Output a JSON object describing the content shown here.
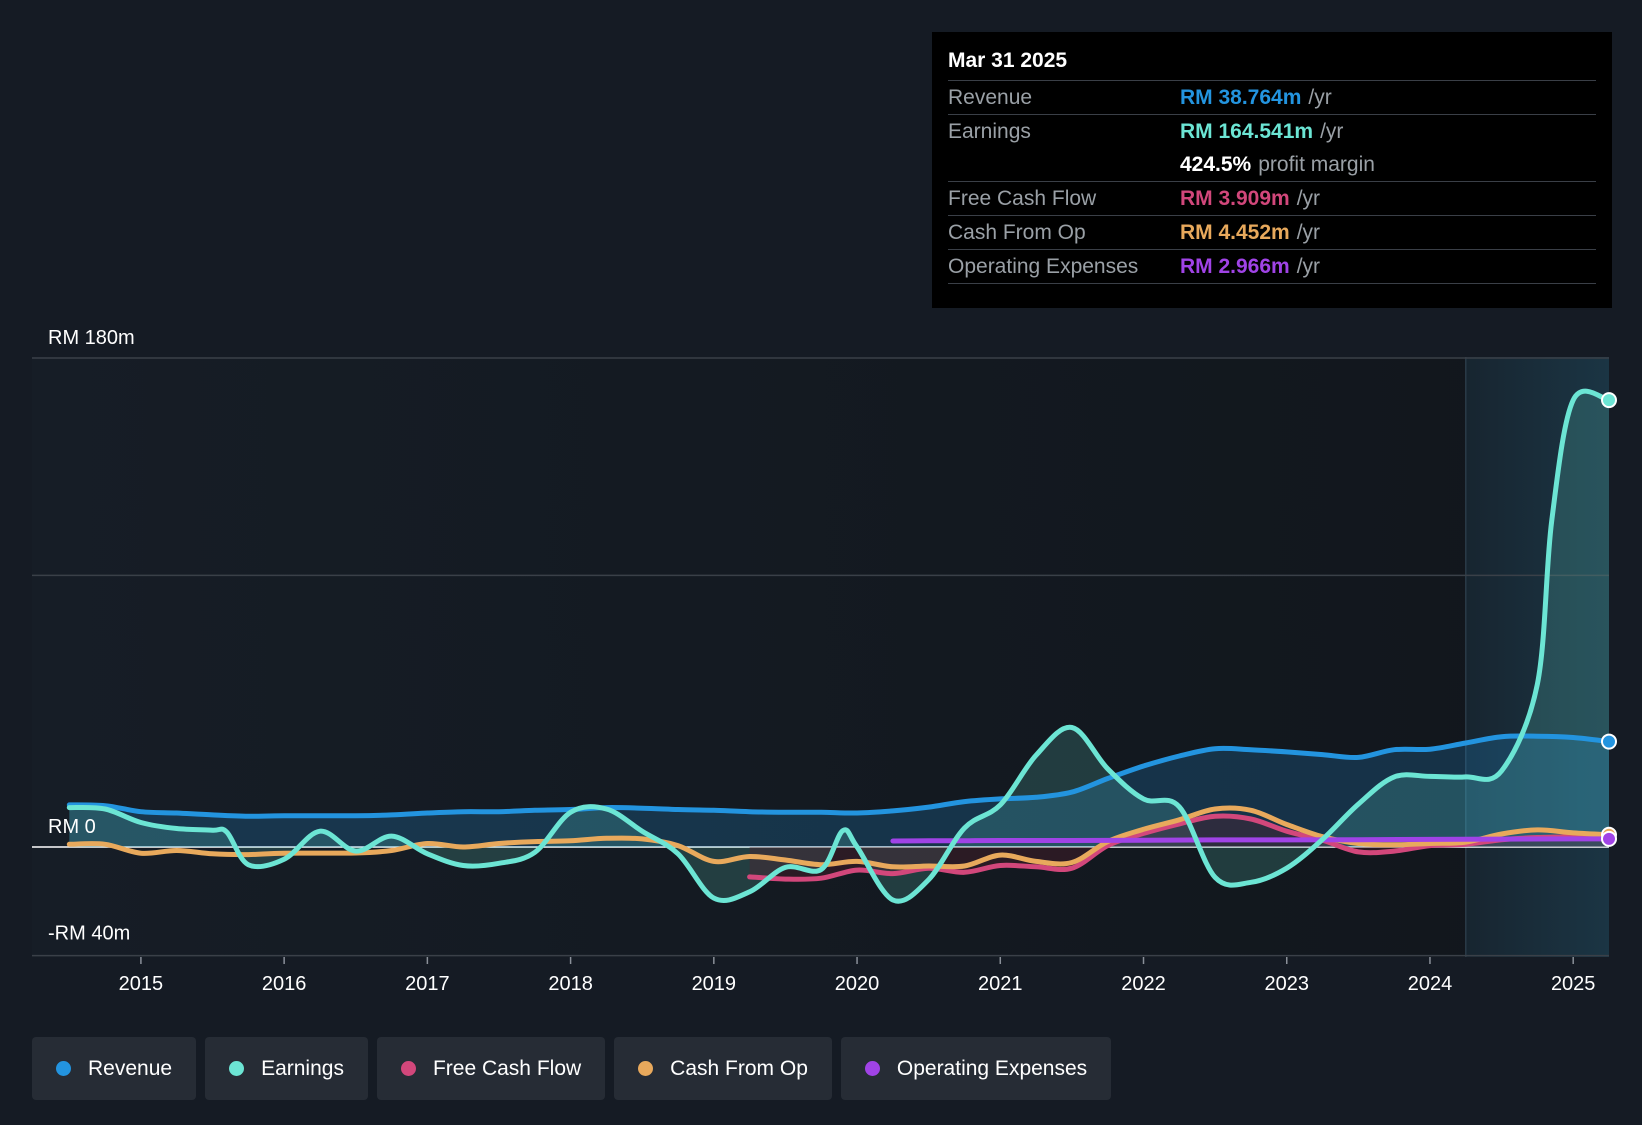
{
  "colors": {
    "revenue": "#2394df",
    "earnings": "#6ce5d4",
    "free_cash_flow": "#d2477b",
    "cash_from_op": "#e8a95c",
    "operating_expenses": "#a043e6",
    "background": "#151b24",
    "future_band": "#1a3140"
  },
  "tooltip": {
    "date": "Mar 31 2025",
    "rows": [
      {
        "label": "Revenue",
        "value": "RM 38.764m",
        "unit": "/yr"
      },
      {
        "label": "Earnings",
        "value": "RM 164.541m",
        "unit": "/yr"
      },
      {
        "margin_value": "424.5%",
        "margin_label": "profit margin"
      },
      {
        "label": "Free Cash Flow",
        "value": "RM 3.909m",
        "unit": "/yr"
      },
      {
        "label": "Cash From Op",
        "value": "RM 4.452m",
        "unit": "/yr"
      },
      {
        "label": "Operating Expenses",
        "value": "RM 2.966m",
        "unit": "/yr"
      }
    ]
  },
  "legend": [
    {
      "label": "Revenue",
      "color": "#2394df"
    },
    {
      "label": "Earnings",
      "color": "#6ce5d4"
    },
    {
      "label": "Free Cash Flow",
      "color": "#d2477b"
    },
    {
      "label": "Cash From Op",
      "color": "#e8a95c"
    },
    {
      "label": "Operating Expenses",
      "color": "#a043e6"
    }
  ],
  "chart_data": {
    "type": "line",
    "title": "",
    "xlabel": "",
    "ylabel": "",
    "y_tick_labels": [
      {
        "value": 180,
        "label": "RM 180m"
      },
      {
        "value": 0,
        "label": "RM 0"
      },
      {
        "value": -40,
        "label": "-RM 40m"
      }
    ],
    "ylim": [
      -40,
      180
    ],
    "xlim": [
      2014.47,
      2025.25
    ],
    "x_ticks": [
      2015,
      2016,
      2017,
      2018,
      2019,
      2020,
      2021,
      2022,
      2023,
      2024,
      2025
    ],
    "x_tick_labels": [
      "2015",
      "2016",
      "2017",
      "2018",
      "2019",
      "2020",
      "2021",
      "2022",
      "2023",
      "2024",
      "2025"
    ],
    "gridlines": [
      180,
      100,
      0,
      -40
    ],
    "highlight_from": 2024.25,
    "series": [
      {
        "name": "Revenue",
        "key": "revenue",
        "fill": true,
        "points": [
          [
            2014.5,
            15.5
          ],
          [
            2014.75,
            15.2
          ],
          [
            2015.0,
            13
          ],
          [
            2015.25,
            12.5
          ],
          [
            2015.5,
            11.8
          ],
          [
            2015.75,
            11.3
          ],
          [
            2016.0,
            11.5
          ],
          [
            2016.5,
            11.5
          ],
          [
            2016.75,
            11.8
          ],
          [
            2017.0,
            12.5
          ],
          [
            2017.25,
            13
          ],
          [
            2017.5,
            13
          ],
          [
            2017.75,
            13.5
          ],
          [
            2018.0,
            13.8
          ],
          [
            2018.25,
            14.5
          ],
          [
            2018.5,
            14.3
          ],
          [
            2018.75,
            13.8
          ],
          [
            2019.0,
            13.5
          ],
          [
            2019.25,
            13
          ],
          [
            2019.5,
            12.8
          ],
          [
            2019.75,
            12.8
          ],
          [
            2020.0,
            12.5
          ],
          [
            2020.25,
            13.3
          ],
          [
            2020.5,
            14.7
          ],
          [
            2020.75,
            16.7
          ],
          [
            2021.0,
            17.7
          ],
          [
            2021.25,
            18.3
          ],
          [
            2021.5,
            20.2
          ],
          [
            2021.75,
            25.2
          ],
          [
            2022.0,
            29.8
          ],
          [
            2022.25,
            33.5
          ],
          [
            2022.5,
            36.2
          ],
          [
            2022.75,
            35.8
          ],
          [
            2023.0,
            35
          ],
          [
            2023.25,
            34
          ],
          [
            2023.5,
            33
          ],
          [
            2023.75,
            35.8
          ],
          [
            2024.0,
            36
          ],
          [
            2024.25,
            38.3
          ],
          [
            2024.5,
            40.6
          ],
          [
            2024.75,
            40.8
          ],
          [
            2025.0,
            40.3
          ],
          [
            2025.25,
            38.8
          ]
        ]
      },
      {
        "name": "Earnings",
        "key": "earnings",
        "fill": true,
        "points": [
          [
            2014.5,
            14.5
          ],
          [
            2014.75,
            14
          ],
          [
            2015.0,
            9
          ],
          [
            2015.25,
            6.8
          ],
          [
            2015.5,
            6.2
          ],
          [
            2015.6,
            5.5
          ],
          [
            2015.75,
            -6.5
          ],
          [
            2016.0,
            -4.5
          ],
          [
            2016.25,
            5.8
          ],
          [
            2016.5,
            -1.5
          ],
          [
            2016.75,
            4
          ],
          [
            2017.0,
            -2.5
          ],
          [
            2017.25,
            -6.8
          ],
          [
            2017.5,
            -6
          ],
          [
            2017.75,
            -2
          ],
          [
            2018.0,
            12.8
          ],
          [
            2018.25,
            14
          ],
          [
            2018.5,
            5.8
          ],
          [
            2018.75,
            -2.5
          ],
          [
            2019.0,
            -18.8
          ],
          [
            2019.25,
            -16.5
          ],
          [
            2019.5,
            -7.5
          ],
          [
            2019.75,
            -8.3
          ],
          [
            2019.9,
            6
          ],
          [
            2020.0,
            0
          ],
          [
            2020.25,
            -19.5
          ],
          [
            2020.5,
            -12
          ],
          [
            2020.75,
            7
          ],
          [
            2021.0,
            15.5
          ],
          [
            2021.25,
            33.8
          ],
          [
            2021.5,
            44
          ],
          [
            2021.75,
            28.8
          ],
          [
            2022.0,
            17.7
          ],
          [
            2022.25,
            14.8
          ],
          [
            2022.5,
            -11.2
          ],
          [
            2022.75,
            -13
          ],
          [
            2023.0,
            -7.8
          ],
          [
            2023.25,
            2.8
          ],
          [
            2023.5,
            15.8
          ],
          [
            2023.75,
            25.8
          ],
          [
            2024.0,
            26
          ],
          [
            2024.25,
            25.8
          ],
          [
            2024.5,
            28
          ],
          [
            2024.75,
            60
          ],
          [
            2024.85,
            120
          ],
          [
            2025.0,
            164.5
          ],
          [
            2025.25,
            164.5
          ]
        ]
      },
      {
        "name": "Free Cash Flow",
        "key": "free_cash_flow",
        "fill": true,
        "points": [
          [
            2019.25,
            -11
          ],
          [
            2019.5,
            -11.8
          ],
          [
            2019.75,
            -11.5
          ],
          [
            2020.0,
            -8.5
          ],
          [
            2020.25,
            -9.8
          ],
          [
            2020.5,
            -7.8
          ],
          [
            2020.75,
            -9.3
          ],
          [
            2021.0,
            -6.8
          ],
          [
            2021.25,
            -7.3
          ],
          [
            2021.5,
            -7.8
          ],
          [
            2021.75,
            0.5
          ],
          [
            2022.0,
            5
          ],
          [
            2022.25,
            8.5
          ],
          [
            2022.5,
            11.3
          ],
          [
            2022.75,
            10.3
          ],
          [
            2023.0,
            5.8
          ],
          [
            2023.25,
            2.5
          ],
          [
            2023.5,
            -1.8
          ],
          [
            2023.75,
            -1.5
          ],
          [
            2024.0,
            0.5
          ],
          [
            2024.25,
            1
          ],
          [
            2024.5,
            2.7
          ],
          [
            2024.75,
            3.5
          ],
          [
            2025.0,
            3.8
          ],
          [
            2025.25,
            3.9
          ]
        ]
      },
      {
        "name": "Cash From Op",
        "key": "cash_from_op",
        "fill": false,
        "points": [
          [
            2014.5,
            1
          ],
          [
            2014.75,
            1
          ],
          [
            2015.0,
            -2.3
          ],
          [
            2015.25,
            -1.3
          ],
          [
            2015.5,
            -2.5
          ],
          [
            2015.75,
            -2.8
          ],
          [
            2016.0,
            -2.3
          ],
          [
            2016.5,
            -2.2
          ],
          [
            2016.75,
            -1.3
          ],
          [
            2017.0,
            1.3
          ],
          [
            2017.25,
            0
          ],
          [
            2017.5,
            1.3
          ],
          [
            2017.75,
            2
          ],
          [
            2018.0,
            2.3
          ],
          [
            2018.25,
            3.2
          ],
          [
            2018.5,
            3
          ],
          [
            2018.75,
            0.5
          ],
          [
            2019.0,
            -5.3
          ],
          [
            2019.25,
            -3.5
          ],
          [
            2019.5,
            -4.8
          ],
          [
            2019.75,
            -6.5
          ],
          [
            2020.0,
            -5.3
          ],
          [
            2020.25,
            -7.3
          ],
          [
            2020.5,
            -7
          ],
          [
            2020.75,
            -7
          ],
          [
            2021.0,
            -3
          ],
          [
            2021.25,
            -5.3
          ],
          [
            2021.5,
            -5.7
          ],
          [
            2021.75,
            2
          ],
          [
            2022.0,
            6.5
          ],
          [
            2022.25,
            10
          ],
          [
            2022.5,
            14
          ],
          [
            2022.75,
            13.5
          ],
          [
            2023.0,
            8.3
          ],
          [
            2023.25,
            3.8
          ],
          [
            2023.5,
            1.3
          ],
          [
            2023.75,
            0.8
          ],
          [
            2024.0,
            1.3
          ],
          [
            2024.25,
            1.8
          ],
          [
            2024.5,
            4.8
          ],
          [
            2024.75,
            6.3
          ],
          [
            2025.0,
            5.2
          ],
          [
            2025.25,
            4.5
          ]
        ]
      },
      {
        "name": "Operating Expenses",
        "key": "operating_expenses",
        "fill": false,
        "points": [
          [
            2020.25,
            2.2
          ],
          [
            2020.5,
            2.3
          ],
          [
            2020.75,
            2.3
          ],
          [
            2021.0,
            2.4
          ],
          [
            2021.5,
            2.4
          ],
          [
            2022.0,
            2.5
          ],
          [
            2022.5,
            2.6
          ],
          [
            2023.0,
            2.6
          ],
          [
            2023.5,
            2.7
          ],
          [
            2024.0,
            2.8
          ],
          [
            2024.5,
            2.9
          ],
          [
            2025.0,
            3
          ],
          [
            2025.25,
            3
          ]
        ]
      }
    ]
  }
}
